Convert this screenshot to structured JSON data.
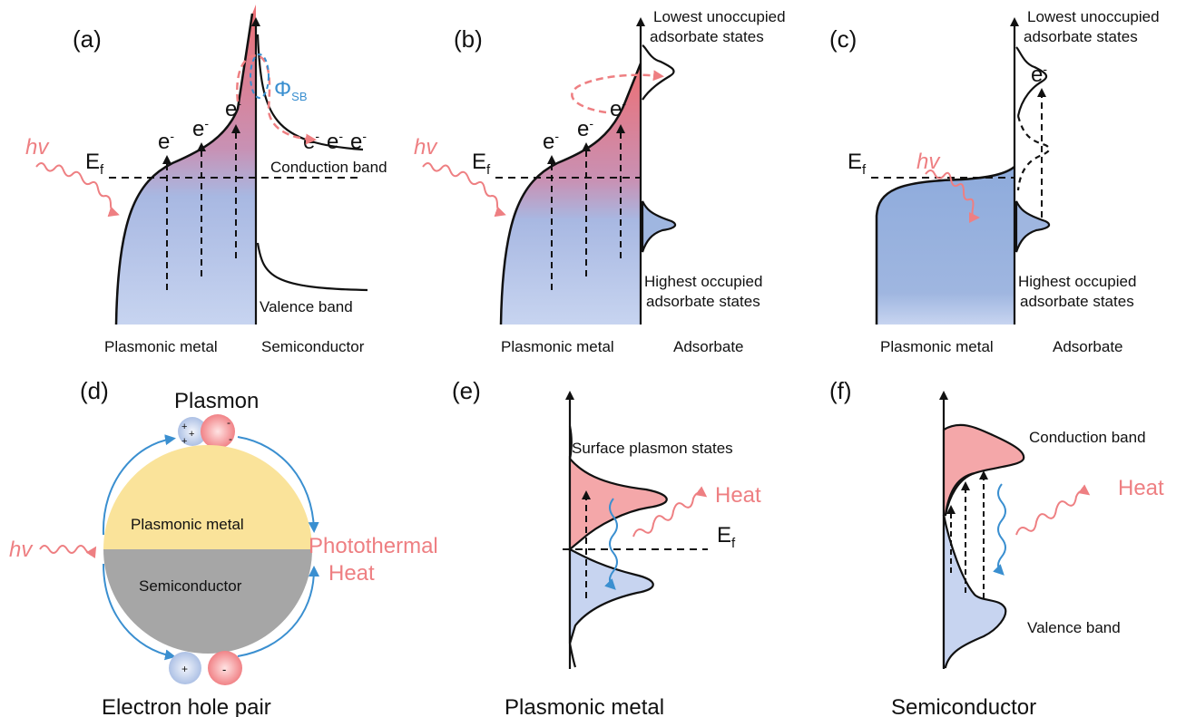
{
  "panels": {
    "a": {
      "label": "(a)",
      "hv": "hv",
      "ef": "E",
      "ef_sub": "f",
      "electron": "e",
      "electron_sup": "-",
      "phi": "Φ",
      "phi_sub": "SB",
      "conduction": "Conduction band",
      "valence": "Valence band",
      "left_title": "Plasmonic metal",
      "right_title": "Semiconductor"
    },
    "b": {
      "label": "(b)",
      "hv": "hv",
      "ef": "E",
      "ef_sub": "f",
      "electron": "e",
      "electron_sup": "-",
      "lumo_1": "Lowest unoccupied",
      "lumo_2": "adsorbate states",
      "homo_1": "Highest occupied",
      "homo_2": "adsorbate states",
      "left_title": "Plasmonic metal",
      "right_title": "Adsorbate"
    },
    "c": {
      "label": "(c)",
      "hv": "hv",
      "ef": "E",
      "ef_sub": "f",
      "electron": "e",
      "electron_sup": "-",
      "lumo_1": "Lowest unoccupied",
      "lumo_2": "adsorbate states",
      "homo_1": "Highest occupied",
      "homo_2": "adsorbate states",
      "left_title": "Plasmonic metal",
      "right_title": "Adsorbate"
    },
    "d": {
      "label": "(d)",
      "plasmon": "Plasmon",
      "metal": "Plasmonic metal",
      "semi": "Semiconductor",
      "hv": "hv",
      "photothermal": "Photothermal",
      "heat": "Heat",
      "pair": "Electron hole pair",
      "plus": "+",
      "minus": "-"
    },
    "e": {
      "label": "(e)",
      "surface": "Surface plasmon states",
      "heat": "Heat",
      "ef": "E",
      "ef_sub": "f",
      "title": "Plasmonic metal"
    },
    "f": {
      "label": "(f)",
      "conduction": "Conduction band",
      "valence": "Valence band",
      "heat": "Heat",
      "title": "Semiconductor"
    }
  },
  "colors": {
    "pink": "#ee7f82",
    "blue_fill": "#9fb6e0",
    "light_blue": "#c9d6ef",
    "yellow": "#fae39a",
    "gray": "#a6a6a6",
    "arrow_blue": "#3a8fd0"
  }
}
